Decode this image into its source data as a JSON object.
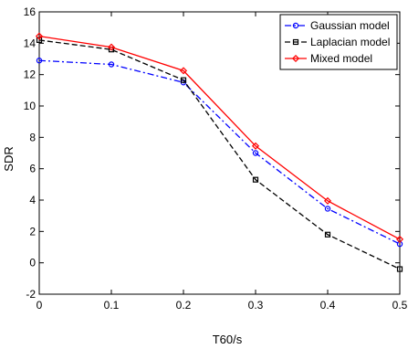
{
  "chart_data": {
    "type": "line",
    "title": "",
    "xlabel": "T60/s",
    "ylabel": "SDR",
    "x": [
      0,
      0.1,
      0.2,
      0.3,
      0.4,
      0.5
    ],
    "xlim": [
      0,
      0.5
    ],
    "ylim": [
      -2,
      16
    ],
    "xticks": [
      "0",
      "0.1",
      "0.2",
      "0.3",
      "0.4",
      "0.5"
    ],
    "yticks": [
      "-2",
      "0",
      "2",
      "4",
      "6",
      "8",
      "10",
      "12",
      "14",
      "16"
    ],
    "grid": false,
    "legend_position": "top-right",
    "series": [
      {
        "name": "Gaussian model",
        "values": [
          12.9,
          12.65,
          11.5,
          7.0,
          3.45,
          1.2
        ],
        "color": "#0000ff",
        "line_style": "dash-dot",
        "marker": "circle"
      },
      {
        "name": "Laplacian model",
        "values": [
          14.2,
          13.6,
          11.65,
          5.3,
          1.8,
          -0.4
        ],
        "color": "#000000",
        "line_style": "dashed",
        "marker": "square"
      },
      {
        "name": "Mixed model",
        "values": [
          14.45,
          13.75,
          12.25,
          7.45,
          3.95,
          1.5
        ],
        "color": "#ff0000",
        "line_style": "solid",
        "marker": "diamond"
      }
    ]
  }
}
